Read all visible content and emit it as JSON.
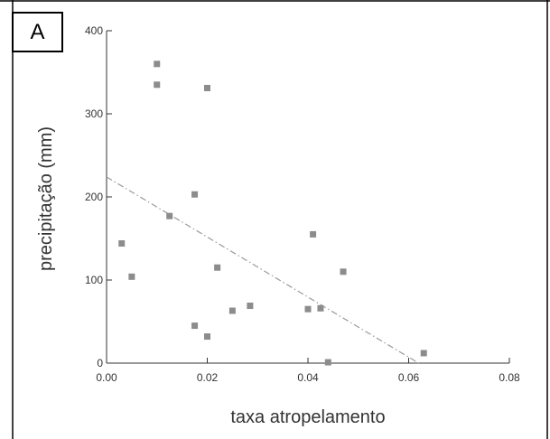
{
  "panel_label": "A",
  "chart_data": {
    "type": "scatter",
    "xlabel": "taxa atropelamento",
    "ylabel": "precipitação (mm)",
    "xlim": [
      0,
      0.08
    ],
    "ylim": [
      0,
      400
    ],
    "x_ticks": [
      0.0,
      0.02,
      0.04,
      0.06,
      0.08
    ],
    "x_tick_labels": [
      "0.00",
      "0.02",
      "0.04",
      "0.06",
      "0.08"
    ],
    "y_ticks": [
      0,
      100,
      200,
      300,
      400
    ],
    "y_tick_labels": [
      "0",
      "100",
      "200",
      "300",
      "400"
    ],
    "points": [
      {
        "x": 0.003,
        "y": 144
      },
      {
        "x": 0.005,
        "y": 104
      },
      {
        "x": 0.01,
        "y": 360
      },
      {
        "x": 0.01,
        "y": 335
      },
      {
        "x": 0.0125,
        "y": 177
      },
      {
        "x": 0.0175,
        "y": 203
      },
      {
        "x": 0.0175,
        "y": 45
      },
      {
        "x": 0.02,
        "y": 331
      },
      {
        "x": 0.02,
        "y": 32
      },
      {
        "x": 0.022,
        "y": 115
      },
      {
        "x": 0.025,
        "y": 63
      },
      {
        "x": 0.0285,
        "y": 69
      },
      {
        "x": 0.04,
        "y": 65
      },
      {
        "x": 0.041,
        "y": 155
      },
      {
        "x": 0.0425,
        "y": 66
      },
      {
        "x": 0.044,
        "y": 1
      },
      {
        "x": 0.047,
        "y": 110
      },
      {
        "x": 0.063,
        "y": 12
      }
    ],
    "trendline": {
      "x": [
        0.0,
        0.062
      ],
      "y": [
        224,
        0
      ],
      "style": "dash-dot"
    },
    "grid": false,
    "colors": {
      "points": "#8c8c8c",
      "trendline": "#9a9a9a",
      "axis": "#333333"
    }
  }
}
